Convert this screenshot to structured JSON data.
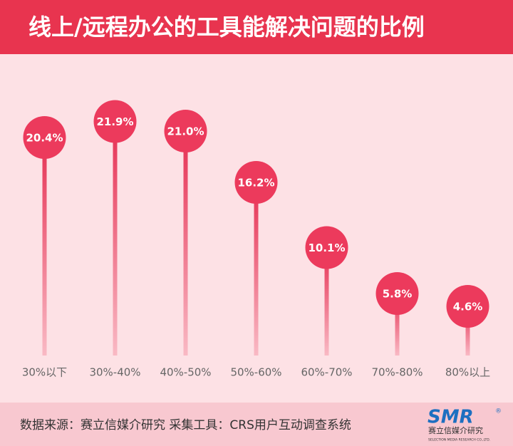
{
  "chart_data": {
    "type": "lollipop",
    "title": "线上/远程办公的工具能解决问题的比例",
    "categories": [
      "30%以下",
      "30%-40%",
      "40%-50%",
      "50%-60%",
      "60%-70%",
      "70%-80%",
      "80%以上"
    ],
    "values": [
      20.4,
      21.9,
      21.0,
      16.2,
      10.1,
      5.8,
      4.6
    ],
    "value_labels": [
      "20.4%",
      "21.9%",
      "21.0%",
      "16.2%",
      "10.1%",
      "5.8%",
      "4.6%"
    ],
    "color": "#ec3a5c",
    "ylim": [
      0,
      25
    ]
  },
  "footer": {
    "source": "数据来源：赛立信媒介研究  采集工具：CRS用户互动调查系统"
  },
  "logo": {
    "name": "SMR",
    "mark": "®",
    "cn": "赛立信媒介研究",
    "en": "SELECTION MEDIA RESEARCH CO.,LTD."
  }
}
